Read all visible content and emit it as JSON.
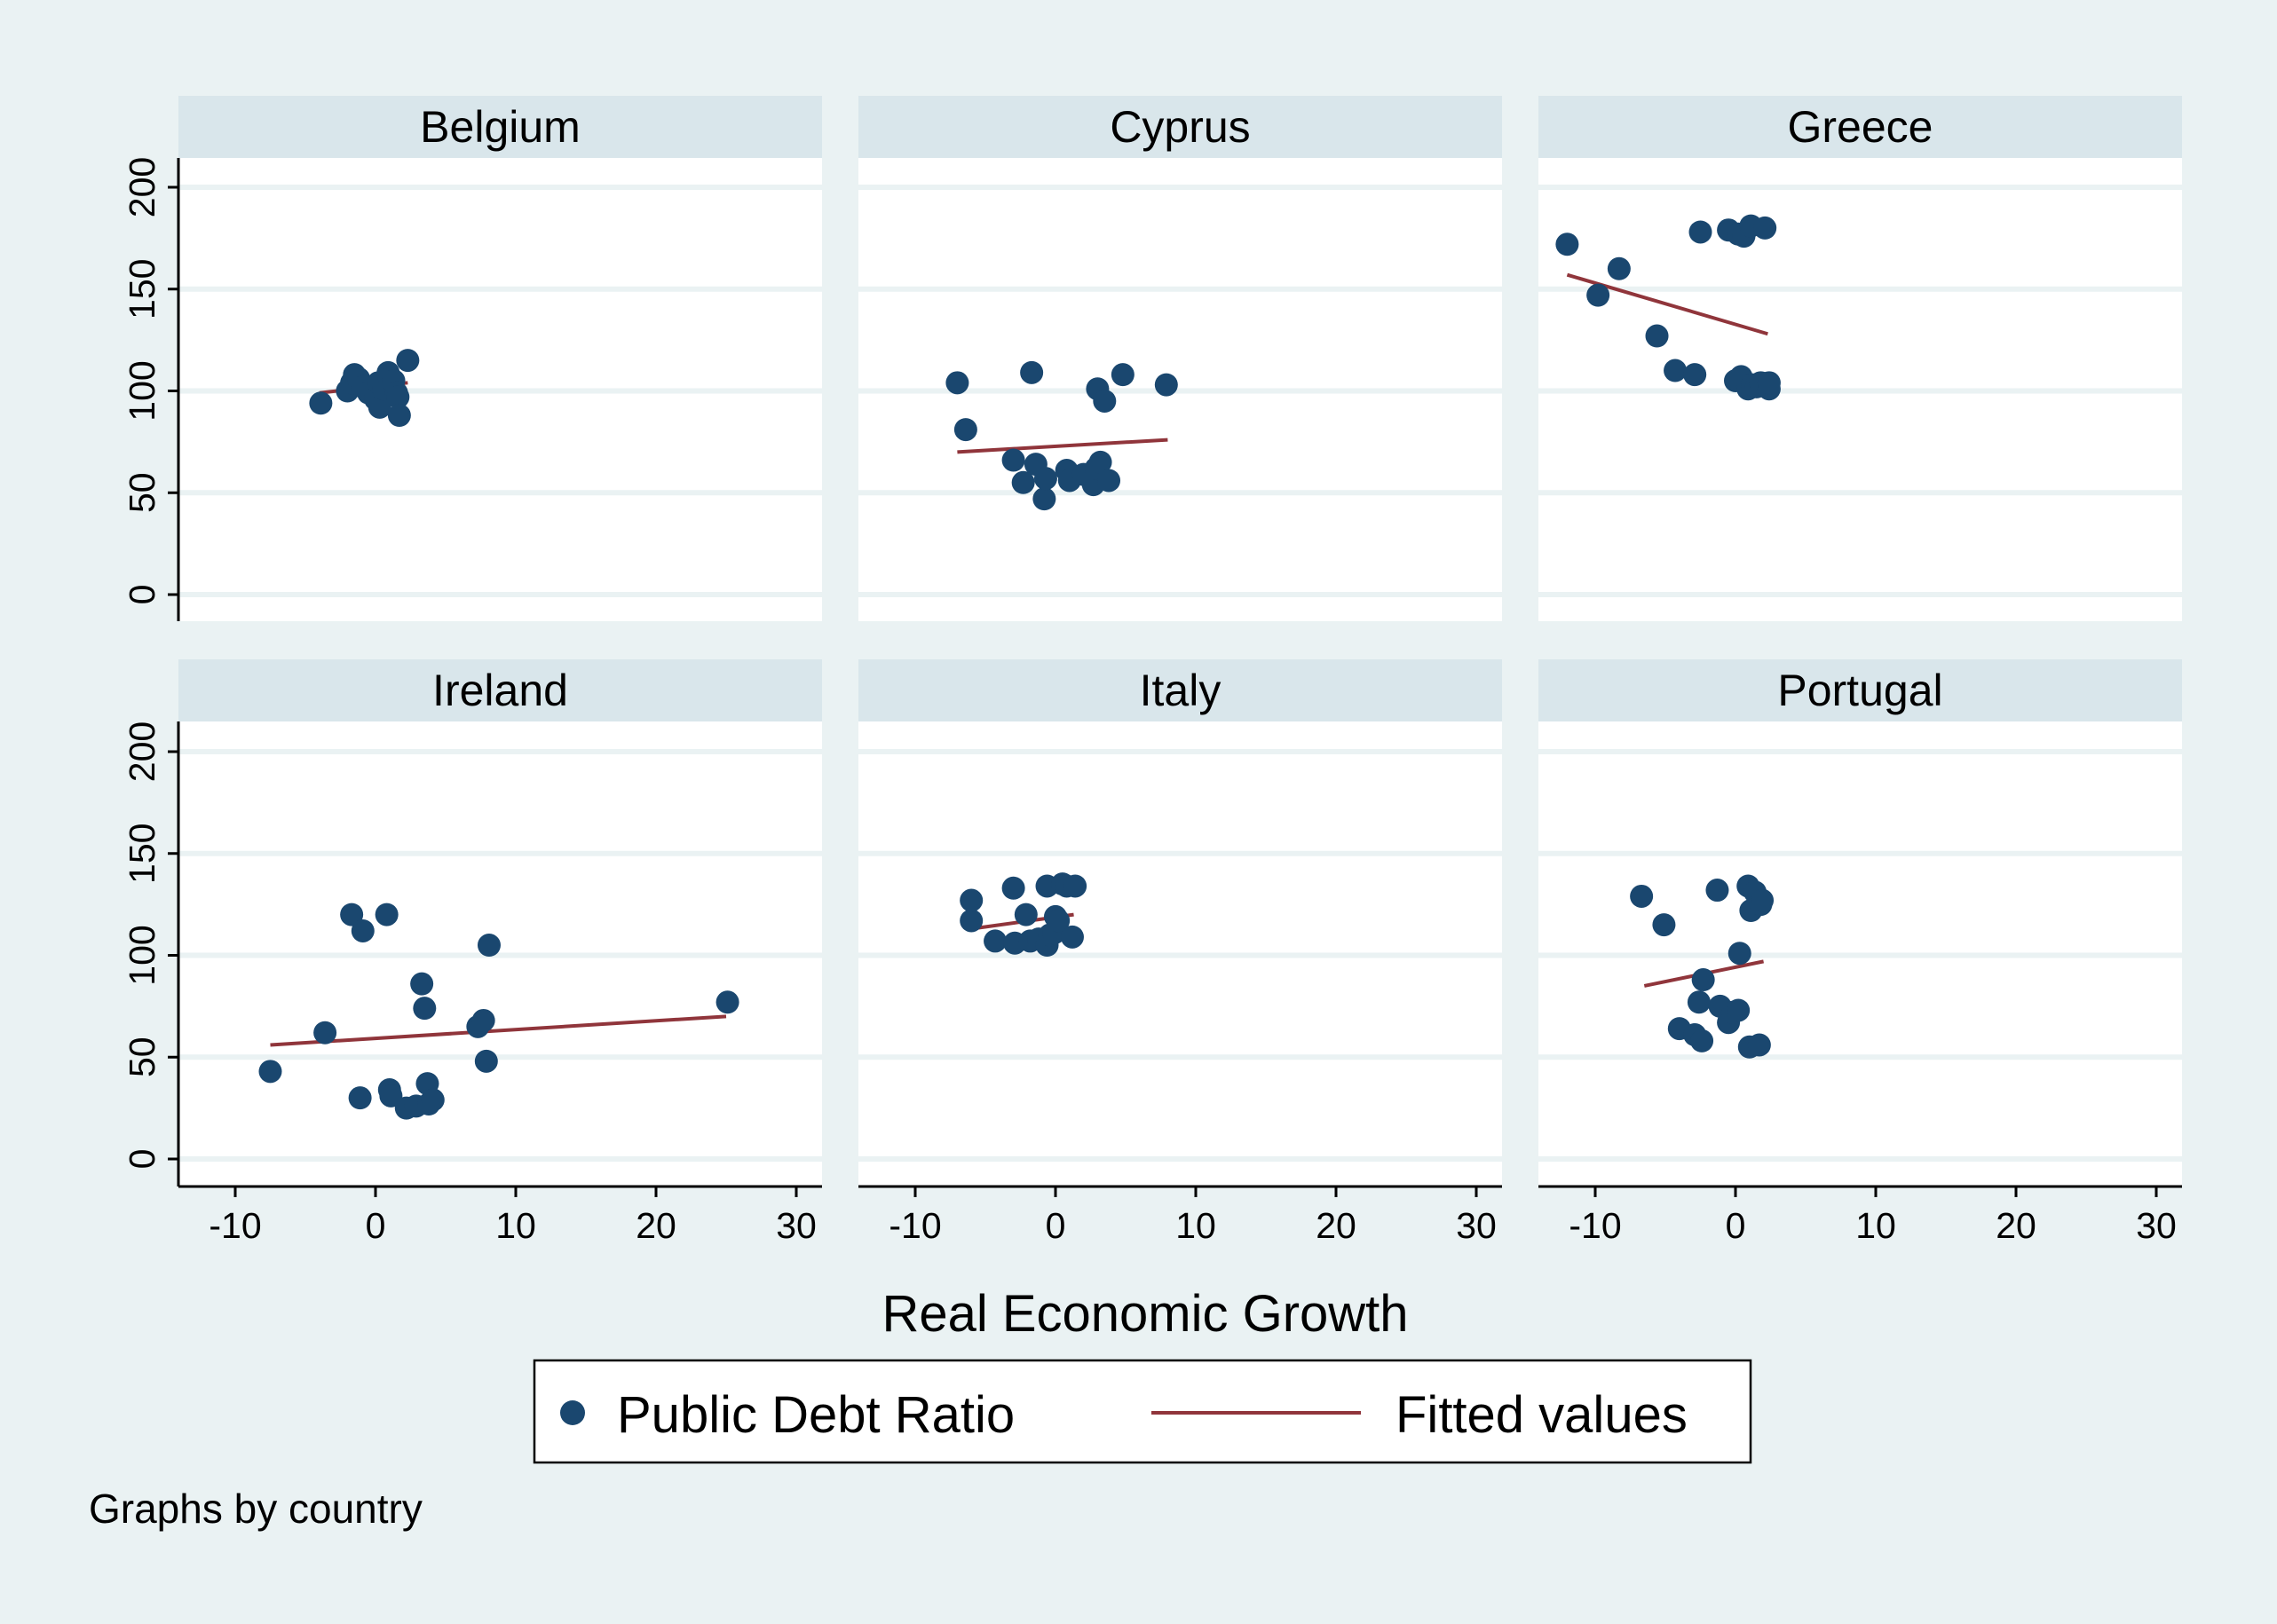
{
  "colors": {
    "background": "#eaf2f3",
    "plot_bg": "#ffffff",
    "strip_bg": "#d9e6eb",
    "gridline": "#eaf2f3",
    "marker": "#1a476f",
    "fit_line": "#90353b",
    "axis": "#000000"
  },
  "chart_data": {
    "type": "scatter",
    "layout": "facet-grid 2x3",
    "xlabel": "Real Economic Growth",
    "ylabel": "",
    "xlim": [
      -14,
      32
    ],
    "ylim": [
      -12,
      212
    ],
    "x_ticks": [
      -10,
      0,
      10,
      20,
      30
    ],
    "y_ticks": [
      0,
      50,
      100,
      150,
      200
    ],
    "x_tick_labels": [
      "-10",
      "0",
      "10",
      "20",
      "30"
    ],
    "y_tick_labels": [
      "0",
      "50",
      "100",
      "150",
      "200"
    ],
    "legend": {
      "position": "bottom-center",
      "entries": [
        {
          "label": "Public Debt Ratio",
          "marker": "circle"
        },
        {
          "label": "Fitted values",
          "marker": "line"
        }
      ]
    },
    "note": "Graphs by country",
    "panels": [
      {
        "title": "Belgium",
        "points": [
          [
            -3.9,
            94
          ],
          [
            -2,
            100
          ],
          [
            -1.7,
            104
          ],
          [
            -1.5,
            108
          ],
          [
            -1.2,
            106
          ],
          [
            -0.9,
            102
          ],
          [
            -0.5,
            99
          ],
          [
            0,
            96
          ],
          [
            0.2,
            104
          ],
          [
            0.3,
            92
          ],
          [
            0.6,
            101
          ],
          [
            0.9,
            109
          ],
          [
            1,
            106
          ],
          [
            1.3,
            105
          ],
          [
            1.5,
            99
          ],
          [
            1.6,
            97
          ],
          [
            1.7,
            88
          ],
          [
            2.3,
            115
          ]
        ],
        "fit": {
          "x": [
            -4,
            2.3
          ],
          "y": [
            99,
            104
          ]
        }
      },
      {
        "title": "Cyprus",
        "points": [
          [
            -7,
            104
          ],
          [
            -6.4,
            81
          ],
          [
            -3,
            66
          ],
          [
            -2.3,
            55
          ],
          [
            -1.7,
            109
          ],
          [
            -1.4,
            64
          ],
          [
            -0.8,
            47
          ],
          [
            -0.7,
            57
          ],
          [
            0.8,
            61
          ],
          [
            1,
            56
          ],
          [
            2,
            59
          ],
          [
            2.7,
            54
          ],
          [
            2.9,
            62
          ],
          [
            3,
            101
          ],
          [
            3.2,
            65
          ],
          [
            3.5,
            95
          ],
          [
            3.8,
            56
          ],
          [
            4.8,
            108
          ],
          [
            7.9,
            103
          ]
        ],
        "fit": {
          "x": [
            -7,
            8
          ],
          "y": [
            70,
            76
          ]
        }
      },
      {
        "title": "Greece",
        "points": [
          [
            -12,
            172
          ],
          [
            -9.8,
            147
          ],
          [
            -8.3,
            160
          ],
          [
            -5.6,
            127
          ],
          [
            -4.3,
            110
          ],
          [
            -2.9,
            108
          ],
          [
            -2.5,
            178
          ],
          [
            -0.5,
            179
          ],
          [
            0,
            105
          ],
          [
            0.2,
            177
          ],
          [
            0.4,
            107
          ],
          [
            0.6,
            176
          ],
          [
            0.9,
            101
          ],
          [
            1.1,
            181
          ],
          [
            1.2,
            103
          ],
          [
            1.5,
            102
          ],
          [
            1.8,
            104
          ],
          [
            2.1,
            180
          ],
          [
            2.4,
            101
          ],
          [
            2.4,
            104
          ]
        ],
        "fit": {
          "x": [
            -12,
            2.3
          ],
          "y": [
            157,
            128
          ]
        }
      },
      {
        "title": "Ireland",
        "points": [
          [
            -7.5,
            43
          ],
          [
            -3.6,
            62
          ],
          [
            -1.7,
            120
          ],
          [
            -1.1,
            30
          ],
          [
            -0.9,
            112
          ],
          [
            0.8,
            120
          ],
          [
            1,
            34
          ],
          [
            1.1,
            31
          ],
          [
            2.2,
            25
          ],
          [
            2.9,
            26
          ],
          [
            3.3,
            86
          ],
          [
            3.5,
            74
          ],
          [
            3.7,
            37
          ],
          [
            3.8,
            27
          ],
          [
            4.1,
            29
          ],
          [
            7.3,
            65
          ],
          [
            7.7,
            68
          ],
          [
            7.9,
            48
          ],
          [
            8.1,
            105
          ],
          [
            25.1,
            77
          ]
        ],
        "fit": {
          "x": [
            -7.5,
            25
          ],
          "y": [
            56,
            70
          ]
        }
      },
      {
        "title": "Italy",
        "points": [
          [
            -6,
            117
          ],
          [
            -6,
            127
          ],
          [
            -4.3,
            107
          ],
          [
            -3,
            133
          ],
          [
            -2.9,
            106
          ],
          [
            -2.1,
            120
          ],
          [
            -1.8,
            107
          ],
          [
            -1.2,
            108
          ],
          [
            -0.6,
            105
          ],
          [
            -0.6,
            134
          ],
          [
            -0.4,
            110
          ],
          [
            -0.1,
            111
          ],
          [
            0,
            119
          ],
          [
            0.2,
            117
          ],
          [
            0.5,
            135
          ],
          [
            0.8,
            134
          ],
          [
            1.2,
            109
          ],
          [
            1.4,
            134
          ]
        ],
        "fit": {
          "x": [
            -6,
            1.3
          ],
          "y": [
            113,
            120
          ]
        }
      },
      {
        "title": "Portugal",
        "points": [
          [
            -6.7,
            129
          ],
          [
            -5.1,
            115
          ],
          [
            -4,
            64
          ],
          [
            -2.9,
            61
          ],
          [
            -2.6,
            77
          ],
          [
            -2.4,
            58
          ],
          [
            -2.3,
            88
          ],
          [
            -1.3,
            132
          ],
          [
            -1.1,
            75
          ],
          [
            -0.5,
            67
          ],
          [
            -0.2,
            72
          ],
          [
            0.2,
            73
          ],
          [
            0.3,
            101
          ],
          [
            0.9,
            134
          ],
          [
            1,
            55
          ],
          [
            1.1,
            122
          ],
          [
            1.4,
            131
          ],
          [
            1.7,
            56
          ],
          [
            1.8,
            125
          ],
          [
            1.9,
            127
          ]
        ],
        "fit": {
          "x": [
            -6.5,
            2
          ],
          "y": [
            85,
            97
          ]
        }
      }
    ]
  }
}
